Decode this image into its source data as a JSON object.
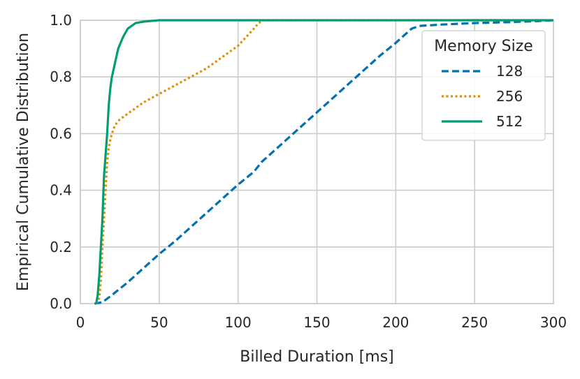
{
  "chart_data": {
    "type": "line",
    "title": "",
    "xlabel": "Billed Duration [ms]",
    "ylabel": "Empirical Cumulative Distribution",
    "xlim": [
      0,
      300
    ],
    "ylim": [
      0,
      1
    ],
    "x_ticks": [
      "0",
      "50",
      "100",
      "150",
      "200",
      "250",
      "300"
    ],
    "y_ticks": [
      "0.0",
      "0.2",
      "0.4",
      "0.6",
      "0.8",
      "1.0"
    ],
    "grid": true,
    "legend": {
      "title": "Memory Size",
      "placement": "top-right"
    },
    "series": [
      {
        "name": "128",
        "color": "#0072b2",
        "style": "dashed",
        "points": [
          [
            9,
            0
          ],
          [
            14,
            0.005
          ],
          [
            20,
            0.03
          ],
          [
            30,
            0.075
          ],
          [
            40,
            0.125
          ],
          [
            50,
            0.175
          ],
          [
            60,
            0.22
          ],
          [
            70,
            0.27
          ],
          [
            80,
            0.32
          ],
          [
            90,
            0.37
          ],
          [
            100,
            0.42
          ],
          [
            110,
            0.465
          ],
          [
            115,
            0.5
          ],
          [
            120,
            0.525
          ],
          [
            130,
            0.575
          ],
          [
            140,
            0.625
          ],
          [
            150,
            0.675
          ],
          [
            160,
            0.725
          ],
          [
            170,
            0.775
          ],
          [
            180,
            0.825
          ],
          [
            190,
            0.875
          ],
          [
            200,
            0.92
          ],
          [
            205,
            0.945
          ],
          [
            210,
            0.97
          ],
          [
            215,
            0.98
          ],
          [
            230,
            0.985
          ],
          [
            250,
            0.99
          ],
          [
            270,
            0.993
          ],
          [
            290,
            0.997
          ],
          [
            300,
            1.0
          ]
        ]
      },
      {
        "name": "256",
        "color": "#de8f05",
        "style": "dotted",
        "points": [
          [
            10,
            0
          ],
          [
            12,
            0.02
          ],
          [
            13,
            0.08
          ],
          [
            14,
            0.2
          ],
          [
            15,
            0.3
          ],
          [
            16,
            0.4
          ],
          [
            17,
            0.5
          ],
          [
            18,
            0.55
          ],
          [
            19,
            0.58
          ],
          [
            20,
            0.6
          ],
          [
            22,
            0.63
          ],
          [
            25,
            0.65
          ],
          [
            30,
            0.67
          ],
          [
            40,
            0.71
          ],
          [
            50,
            0.74
          ],
          [
            60,
            0.77
          ],
          [
            70,
            0.8
          ],
          [
            80,
            0.83
          ],
          [
            90,
            0.87
          ],
          [
            100,
            0.91
          ],
          [
            105,
            0.94
          ],
          [
            110,
            0.97
          ],
          [
            113,
            0.99
          ],
          [
            116,
            1.0
          ],
          [
            300,
            1.0
          ]
        ]
      },
      {
        "name": "512",
        "color": "#029e73",
        "style": "solid",
        "points": [
          [
            10,
            0
          ],
          [
            11,
            0.03
          ],
          [
            12,
            0.1
          ],
          [
            13,
            0.2
          ],
          [
            14,
            0.3
          ],
          [
            15,
            0.45
          ],
          [
            17,
            0.6
          ],
          [
            18,
            0.7
          ],
          [
            19,
            0.76
          ],
          [
            20,
            0.8
          ],
          [
            22,
            0.85
          ],
          [
            24,
            0.9
          ],
          [
            27,
            0.94
          ],
          [
            30,
            0.97
          ],
          [
            35,
            0.99
          ],
          [
            40,
            0.995
          ],
          [
            50,
            1.0
          ],
          [
            300,
            1.0
          ]
        ]
      }
    ]
  }
}
